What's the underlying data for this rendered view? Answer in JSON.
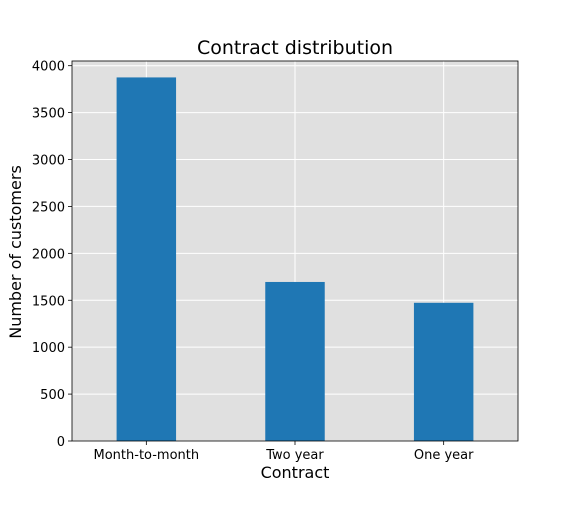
{
  "chart_data": {
    "type": "bar",
    "title": "Contract distribution",
    "xlabel": "Contract",
    "ylabel": "Number of customers",
    "categories": [
      "Month-to-month",
      "Two year",
      "One year"
    ],
    "values": [
      3875,
      1695,
      1473
    ],
    "ylim": [
      0,
      4050
    ],
    "yticks": [
      0,
      500,
      1000,
      1500,
      2000,
      2500,
      3000,
      3500,
      4000
    ],
    "grid": true,
    "colors": {
      "bar": "#1f77b4",
      "plot_background": "#e0e0e0",
      "grid": "#ffffff"
    }
  }
}
